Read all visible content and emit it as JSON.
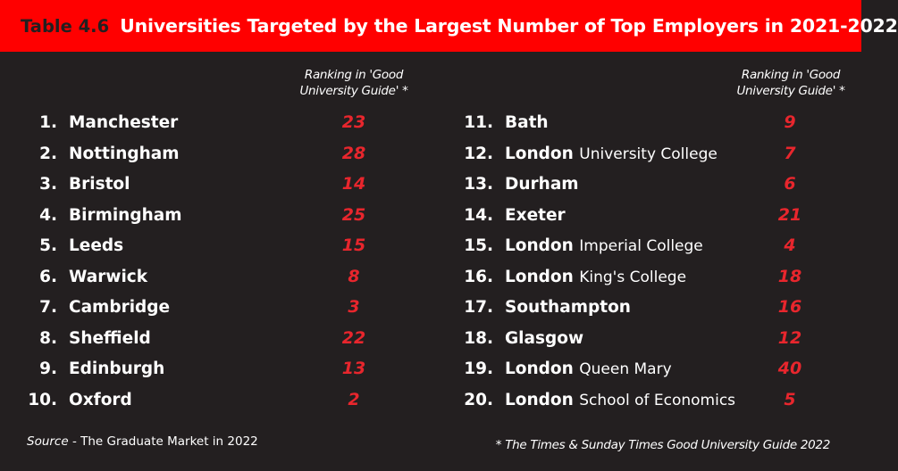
{
  "title": {
    "label": "Table 4.6",
    "text": "Universities Targeted by the Largest Number of Top Employers in 2021-2022"
  },
  "column_header": "Ranking in 'Good University Guide' *",
  "left_list": [
    {
      "rank": "1.",
      "name": "Manchester",
      "sub": "",
      "value": "23"
    },
    {
      "rank": "2.",
      "name": "Nottingham",
      "sub": "",
      "value": "28"
    },
    {
      "rank": "3.",
      "name": "Bristol",
      "sub": "",
      "value": "14"
    },
    {
      "rank": "4.",
      "name": "Birmingham",
      "sub": "",
      "value": "25"
    },
    {
      "rank": "5.",
      "name": "Leeds",
      "sub": "",
      "value": "15"
    },
    {
      "rank": "6.",
      "name": "Warwick",
      "sub": "",
      "value": "8"
    },
    {
      "rank": "7.",
      "name": "Cambridge",
      "sub": "",
      "value": "3"
    },
    {
      "rank": "8.",
      "name": "Sheffield",
      "sub": "",
      "value": "22"
    },
    {
      "rank": "9.",
      "name": "Edinburgh",
      "sub": "",
      "value": "13"
    },
    {
      "rank": "10.",
      "name": "Oxford",
      "sub": "",
      "value": "2"
    }
  ],
  "right_list": [
    {
      "rank": "11.",
      "name": "Bath",
      "sub": "",
      "value": "9"
    },
    {
      "rank": "12.",
      "name": "London",
      "sub": "University College",
      "value": "7"
    },
    {
      "rank": "13.",
      "name": "Durham",
      "sub": "",
      "value": "6"
    },
    {
      "rank": "14.",
      "name": "Exeter",
      "sub": "",
      "value": "21"
    },
    {
      "rank": "15.",
      "name": "London",
      "sub": "Imperial College",
      "value": "4"
    },
    {
      "rank": "16.",
      "name": "London",
      "sub": "King's College",
      "value": "18"
    },
    {
      "rank": "17.",
      "name": "Southampton",
      "sub": "",
      "value": "16"
    },
    {
      "rank": "18.",
      "name": "Glasgow",
      "sub": "",
      "value": "12"
    },
    {
      "rank": "19.",
      "name": "London",
      "sub": "Queen Mary",
      "value": "40"
    },
    {
      "rank": "20.",
      "name": "London",
      "sub": "School of Economics",
      "value": "5"
    }
  ],
  "footer": {
    "source_label": "Source",
    "source_text": " - The Graduate Market in 2022",
    "note": "* The Times & Sunday Times Good University Guide 2022"
  },
  "colors": {
    "background": "#231f20",
    "title_bar": "#ff0000",
    "value": "#e8262d",
    "text": "#ffffff"
  }
}
